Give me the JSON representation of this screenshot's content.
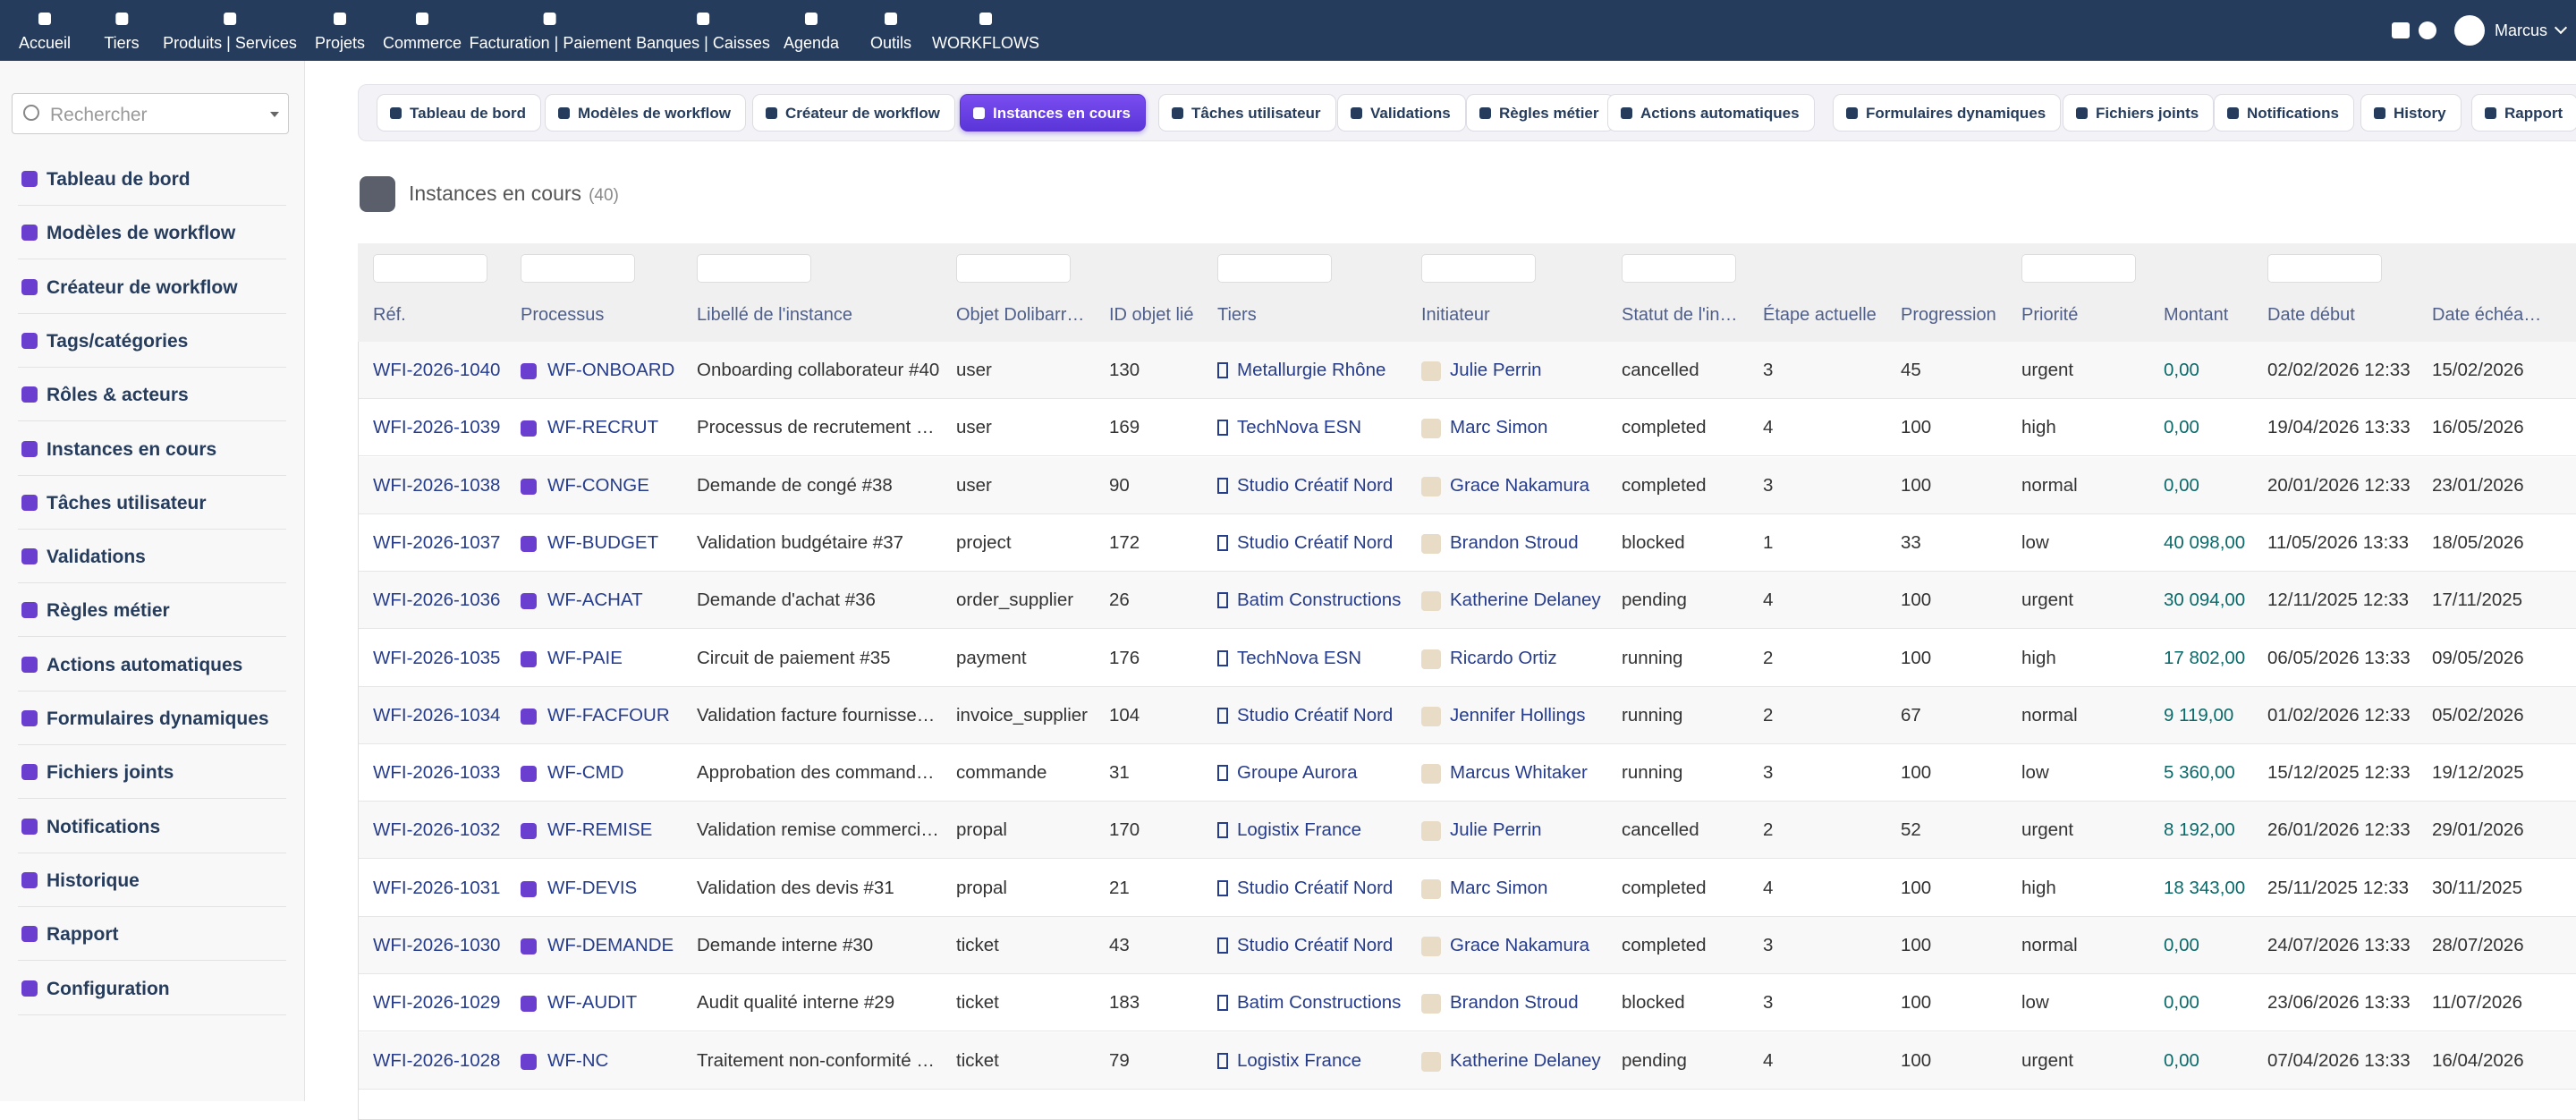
{
  "nav": {
    "items": [
      "Accueil",
      "Tiers",
      "Produits | Services",
      "Projets",
      "Commerce",
      "Facturation | Paiement",
      "Banques | Caisses",
      "Agenda",
      "Outils",
      "WORKFLOWS"
    ],
    "user": "Marcus"
  },
  "search_placeholder": "Rechercher",
  "sidebar": [
    "Tableau de bord",
    "Modèles de workflow",
    "Créateur de workflow",
    "Tags/catégories",
    "Rôles & acteurs",
    "Instances en cours",
    "Tâches utilisateur",
    "Validations",
    "Règles métier",
    "Actions automatiques",
    "Formulaires dynamiques",
    "Fichiers joints",
    "Notifications",
    "Historique",
    "Rapport",
    "Configuration"
  ],
  "tabs": [
    "Tableau de bord",
    "Modèles de workflow",
    "Créateur de workflow",
    "Instances en cours",
    "Tâches utilisateur",
    "Validations",
    "Règles métier",
    "Actions automatiques",
    "Formulaires dynamiques",
    "Fichiers joints",
    "Notifications",
    "History",
    "Rapport"
  ],
  "page_title": "Instances en cours",
  "count": "(40)",
  "table": {
    "columns": [
      "Réf.",
      "Processus",
      "Libellé de l'instance",
      "Objet Dolibarr…",
      "ID objet lié",
      "Tiers",
      "Initiateur",
      "Statut de l'in…",
      "Étape actuelle",
      "Progression",
      "Priorité",
      "Montant",
      "Date début",
      "Date échéa…"
    ],
    "rows": [
      [
        "WFI-2026-1040",
        "WF-ONBOARD",
        "Onboarding collaborateur #40",
        "user",
        "130",
        "Metallurgie Rhône",
        "Julie Perrin",
        "cancelled",
        "3",
        "45",
        "urgent",
        "0,00",
        "02/02/2026 12:33",
        "15/02/2026"
      ],
      [
        "WFI-2026-1039",
        "WF-RECRUT",
        "Processus de recrutement …",
        "user",
        "169",
        "TechNova ESN",
        "Marc Simon",
        "completed",
        "4",
        "100",
        "high",
        "0,00",
        "19/04/2026 13:33",
        "16/05/2026"
      ],
      [
        "WFI-2026-1038",
        "WF-CONGE",
        "Demande de congé #38",
        "user",
        "90",
        "Studio Créatif Nord",
        "Grace Nakamura",
        "completed",
        "3",
        "100",
        "normal",
        "0,00",
        "20/01/2026 12:33",
        "23/01/2026"
      ],
      [
        "WFI-2026-1037",
        "WF-BUDGET",
        "Validation budgétaire #37",
        "project",
        "172",
        "Studio Créatif Nord",
        "Brandon Stroud",
        "blocked",
        "1",
        "33",
        "low",
        "40 098,00",
        "11/05/2026 13:33",
        "18/05/2026"
      ],
      [
        "WFI-2026-1036",
        "WF-ACHAT",
        "Demande d'achat #36",
        "order_supplier",
        "26",
        "Batim Constructions",
        "Katherine Delaney",
        "pending",
        "4",
        "100",
        "urgent",
        "30 094,00",
        "12/11/2025 12:33",
        "17/11/2025"
      ],
      [
        "WFI-2026-1035",
        "WF-PAIE",
        "Circuit de paiement #35",
        "payment",
        "176",
        "TechNova ESN",
        "Ricardo Ortiz",
        "running",
        "2",
        "100",
        "high",
        "17 802,00",
        "06/05/2026 13:33",
        "09/05/2026"
      ],
      [
        "WFI-2026-1034",
        "WF-FACFOUR",
        "Validation facture fournisse…",
        "invoice_supplier",
        "104",
        "Studio Créatif Nord",
        "Jennifer Hollings",
        "running",
        "2",
        "67",
        "normal",
        "9 119,00",
        "01/02/2026 12:33",
        "05/02/2026"
      ],
      [
        "WFI-2026-1033",
        "WF-CMD",
        "Approbation des command…",
        "commande",
        "31",
        "Groupe Aurora",
        "Marcus Whitaker",
        "running",
        "3",
        "100",
        "low",
        "5 360,00",
        "15/12/2025 12:33",
        "19/12/2025"
      ],
      [
        "WFI-2026-1032",
        "WF-REMISE",
        "Validation remise commerci…",
        "propal",
        "170",
        "Logistix France",
        "Julie Perrin",
        "cancelled",
        "2",
        "52",
        "urgent",
        "8 192,00",
        "26/01/2026 12:33",
        "29/01/2026"
      ],
      [
        "WFI-2026-1031",
        "WF-DEVIS",
        "Validation des devis #31",
        "propal",
        "21",
        "Studio Créatif Nord",
        "Marc Simon",
        "completed",
        "4",
        "100",
        "high",
        "18 343,00",
        "25/11/2025 12:33",
        "30/11/2025"
      ],
      [
        "WFI-2026-1030",
        "WF-DEMANDE",
        "Demande interne #30",
        "ticket",
        "43",
        "Studio Créatif Nord",
        "Grace Nakamura",
        "completed",
        "3",
        "100",
        "normal",
        "0,00",
        "24/07/2026 13:33",
        "28/07/2026"
      ],
      [
        "WFI-2026-1029",
        "WF-AUDIT",
        "Audit qualité interne #29",
        "ticket",
        "183",
        "Batim Constructions",
        "Brandon Stroud",
        "blocked",
        "3",
        "100",
        "low",
        "0,00",
        "23/06/2026 13:33",
        "11/07/2026"
      ],
      [
        "WFI-2026-1028",
        "WF-NC",
        "Traitement non-conformité …",
        "ticket",
        "79",
        "Logistix France",
        "Katherine Delaney",
        "pending",
        "4",
        "100",
        "urgent",
        "0,00",
        "07/04/2026 13:33",
        "16/04/2026"
      ]
    ]
  }
}
